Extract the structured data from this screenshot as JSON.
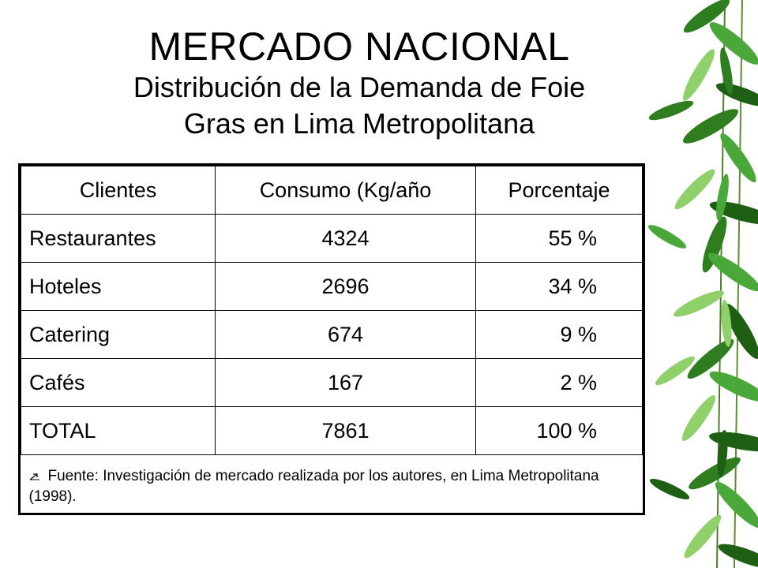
{
  "slide": {
    "title": "MERCADO NACIONAL",
    "subtitle_line1": "Distribución de la Demanda de Foie",
    "subtitle_line2": "Gras en Lima Metropolitana"
  },
  "table": {
    "headers": [
      "Clientes",
      "Consumo (Kg/año",
      "Porcentaje"
    ],
    "rows": [
      [
        "Restaurantes",
        "4324",
        "55 %"
      ],
      [
        "Hoteles",
        "2696",
        "34 %"
      ],
      [
        "Catering",
        "674",
        "9 %"
      ],
      [
        "Cafés",
        "167",
        "2 %"
      ],
      [
        "TOTAL",
        "7861",
        "100 %"
      ]
    ],
    "source_note": "Fuente: Investigación de mercado realizada por los autores, en Lima Metropolitana (1998)."
  },
  "decoration": {
    "bullet_icon": "small-arrow-icon",
    "side_art": "bamboo-leaves",
    "leaf_colors": [
      "#2e7d1e",
      "#4aa83a",
      "#8fd06a",
      "#1f5f14"
    ]
  }
}
